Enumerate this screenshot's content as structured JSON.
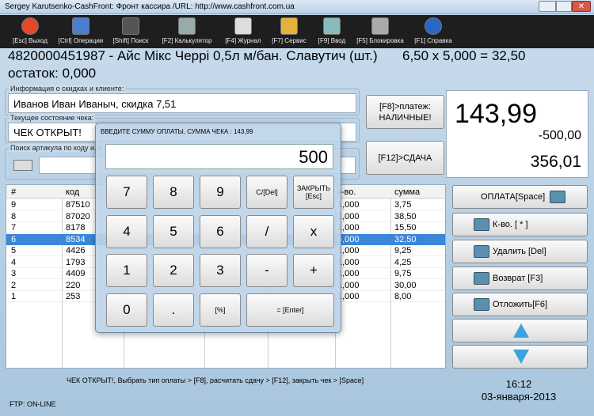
{
  "window": {
    "title": "Sergey Karutsenko-CashFront: Фронт кассира /URL: http://www.cashfront.com.ua"
  },
  "toolbar": [
    "[Esc] Выход",
    "[Ctrl] Операции",
    "[Shift] Поиск",
    "[F2] Калькулятор",
    "[F4] Журнал",
    "[F7] Сервис",
    "[F9] Ввод",
    "[F5] Блокировка",
    "[F1] Справка"
  ],
  "product": {
    "line": "4820000451987 - Айс Мікс Черрі 0,5л м/бан. Славутич (шт.)",
    "calc": "6,50 x 5,000 = 32,50",
    "stock": "остаток: 0,000"
  },
  "discount": {
    "label": "Информация о скидках и клиенте:",
    "value": "Иванов Иван Иваныч, скидка  7,51"
  },
  "state": {
    "label": "Текущее состояние чека:",
    "value": "ЧЕК ОТКРЫТ!"
  },
  "search": {
    "label": "Поиск артикула по коду или"
  },
  "buttons": {
    "payment": [
      "[F8]>платеж:",
      "НАЛИЧНЫЕ!"
    ],
    "change": "[F12]>СДАЧА"
  },
  "totals": {
    "sum": "143,99",
    "paid": "-500,00",
    "change": "356,01"
  },
  "table": {
    "columns": [
      "#",
      "код",
      "к-во.",
      "сумма"
    ],
    "rows": [
      [
        "9",
        "87510",
        "1,000",
        "3,75"
      ],
      [
        "8",
        "87020",
        "1,000",
        "38,50"
      ],
      [
        "7",
        "8178",
        "1,000",
        "15,50"
      ],
      [
        "6",
        "8534",
        "5,000",
        "32,50"
      ],
      [
        "5",
        "4426",
        "1,000",
        "9,25"
      ],
      [
        "4",
        "1793",
        "1,000",
        "4,25"
      ],
      [
        "3",
        "4409",
        "1,000",
        "9,75"
      ],
      [
        "2",
        "220",
        "1,000",
        "30,00"
      ],
      [
        "1",
        "253",
        "1,000",
        "8,00"
      ]
    ],
    "selected_row": 3
  },
  "actions": [
    "ОПЛАТА[Space]",
    "К-во. [ * ]",
    "Удалить [Del]",
    "Возврат [F3]",
    "Отложить[F6]"
  ],
  "status": {
    "hint": "ЧЕК ОТКРЫТ!, Выбрать тип оплаты > [F8], расчитать сдачу > [F12], закрыть чек > [Space]",
    "ftp": "FTP: ON-LINE",
    "time": "16:12",
    "date": "03-января-2013"
  },
  "dialog": {
    "title": "ВВЕДИТЕ СУММУ ОПЛАТЫ, СУММА ЧЕКА : 143,99",
    "input": "500",
    "keys": [
      "7",
      "8",
      "9",
      "C/[Del]",
      "ЗАКРЫТЬ [Esc]",
      "4",
      "5",
      "6",
      "/",
      "x",
      "1",
      "2",
      "3",
      "-",
      "+",
      "0",
      ".",
      "[%]",
      "= [Enter]"
    ]
  }
}
